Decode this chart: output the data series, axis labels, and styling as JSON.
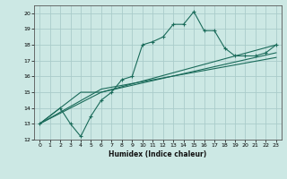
{
  "title": "",
  "xlabel": "Humidex (Indice chaleur)",
  "bg_color": "#cce8e4",
  "grid_color": "#aaccca",
  "line_color": "#1a6b5a",
  "xlim": [
    -0.5,
    23.5
  ],
  "ylim": [
    12,
    20.5
  ],
  "xticks": [
    0,
    1,
    2,
    3,
    4,
    5,
    6,
    7,
    8,
    9,
    10,
    11,
    12,
    13,
    14,
    15,
    16,
    17,
    18,
    19,
    20,
    21,
    22,
    23
  ],
  "yticks": [
    12,
    13,
    14,
    15,
    16,
    17,
    18,
    19,
    20
  ],
  "series": [
    {
      "x": [
        0,
        2,
        3,
        4,
        5,
        6,
        7,
        8,
        9,
        10,
        11,
        12,
        13,
        14,
        15,
        16,
        17,
        18,
        19,
        20,
        21,
        22,
        23
      ],
      "y": [
        13,
        14,
        13,
        12.2,
        13.5,
        14.5,
        15,
        15.8,
        16,
        18,
        18.2,
        18.5,
        19.3,
        19.3,
        20.1,
        18.9,
        18.9,
        17.8,
        17.3,
        17.3,
        17.3,
        17.5,
        18
      ],
      "marker": "+"
    },
    {
      "x": [
        0,
        2,
        4,
        6,
        23
      ],
      "y": [
        13,
        14,
        15,
        15,
        18
      ],
      "marker": null
    },
    {
      "x": [
        0,
        6,
        23
      ],
      "y": [
        13,
        15,
        17.5
      ],
      "marker": null
    },
    {
      "x": [
        0,
        6,
        23
      ],
      "y": [
        13,
        15.2,
        17.2
      ],
      "marker": null
    }
  ]
}
